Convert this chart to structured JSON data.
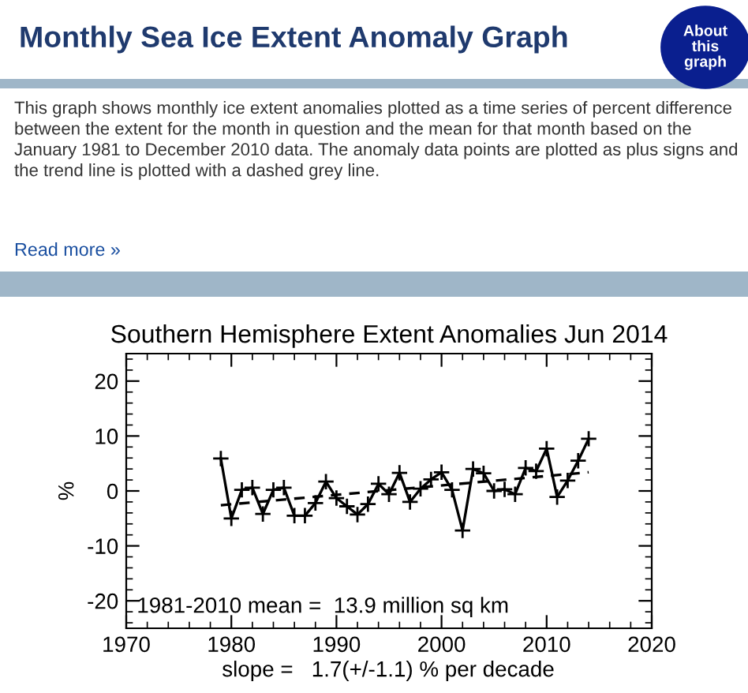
{
  "chart_data": {
    "type": "line",
    "title": "Monthly Sea Ice Extent Anomaly Graph",
    "subtitle": "Southern Hemisphere Extent Anomalies Jun 2014",
    "ylabel": "%",
    "annotations": [
      "This graph shows monthly ice extent anomalies plotted as a time series of percent difference between the extent for the month in question and the mean for that month based on the January 1981 to December 2010 data. The anomaly data points are plotted as plus signs and the trend line is plotted with a dashed grey line.",
      "Read more »",
      "About this graph",
      "1981-2010 mean =  13.9 million sq km",
      "slope =   1.7(+/-1.1) % per decade"
    ],
    "x": [
      1979,
      1980,
      1981,
      1982,
      1983,
      1984,
      1985,
      1986,
      1987,
      1988,
      1989,
      1990,
      1991,
      1992,
      1993,
      1994,
      1995,
      1996,
      1997,
      1998,
      1999,
      2000,
      2001,
      2002,
      2003,
      2004,
      2005,
      2006,
      2007,
      2008,
      2009,
      2010,
      2011,
      2012,
      2013,
      2014
    ],
    "series": [
      {
        "color": "#000000",
        "marker": "cross",
        "line_style": "solid",
        "values": [
          5.9,
          -5.0,
          0.2,
          0.6,
          -4.2,
          0.2,
          0.6,
          -4.5,
          -4.5,
          -2.2,
          1.7,
          -1.3,
          -2.8,
          -4.3,
          -2.4,
          1.3,
          -0.6,
          3.3,
          -2.0,
          0.4,
          2.1,
          3.4,
          0.2,
          -7.2,
          4.0,
          3.2,
          0.0,
          0.3,
          -0.6,
          4.2,
          3.6,
          7.7,
          -1.1,
          1.9,
          5.5,
          9.5
        ]
      },
      {
        "type": "line",
        "color": "#000000",
        "marker": "none",
        "line_style": "dashed",
        "x": [
          1979,
          2014
        ],
        "values": [
          -2.6,
          3.4
        ]
      }
    ],
    "xlim": [
      1970,
      2020
    ],
    "xticks": [
      1970,
      1980,
      1990,
      2000,
      2010,
      2020
    ],
    "ylim": [
      -25,
      25
    ],
    "yticks": [
      -20,
      -10,
      0,
      10,
      20
    ],
    "grid": false,
    "legend": false
  }
}
